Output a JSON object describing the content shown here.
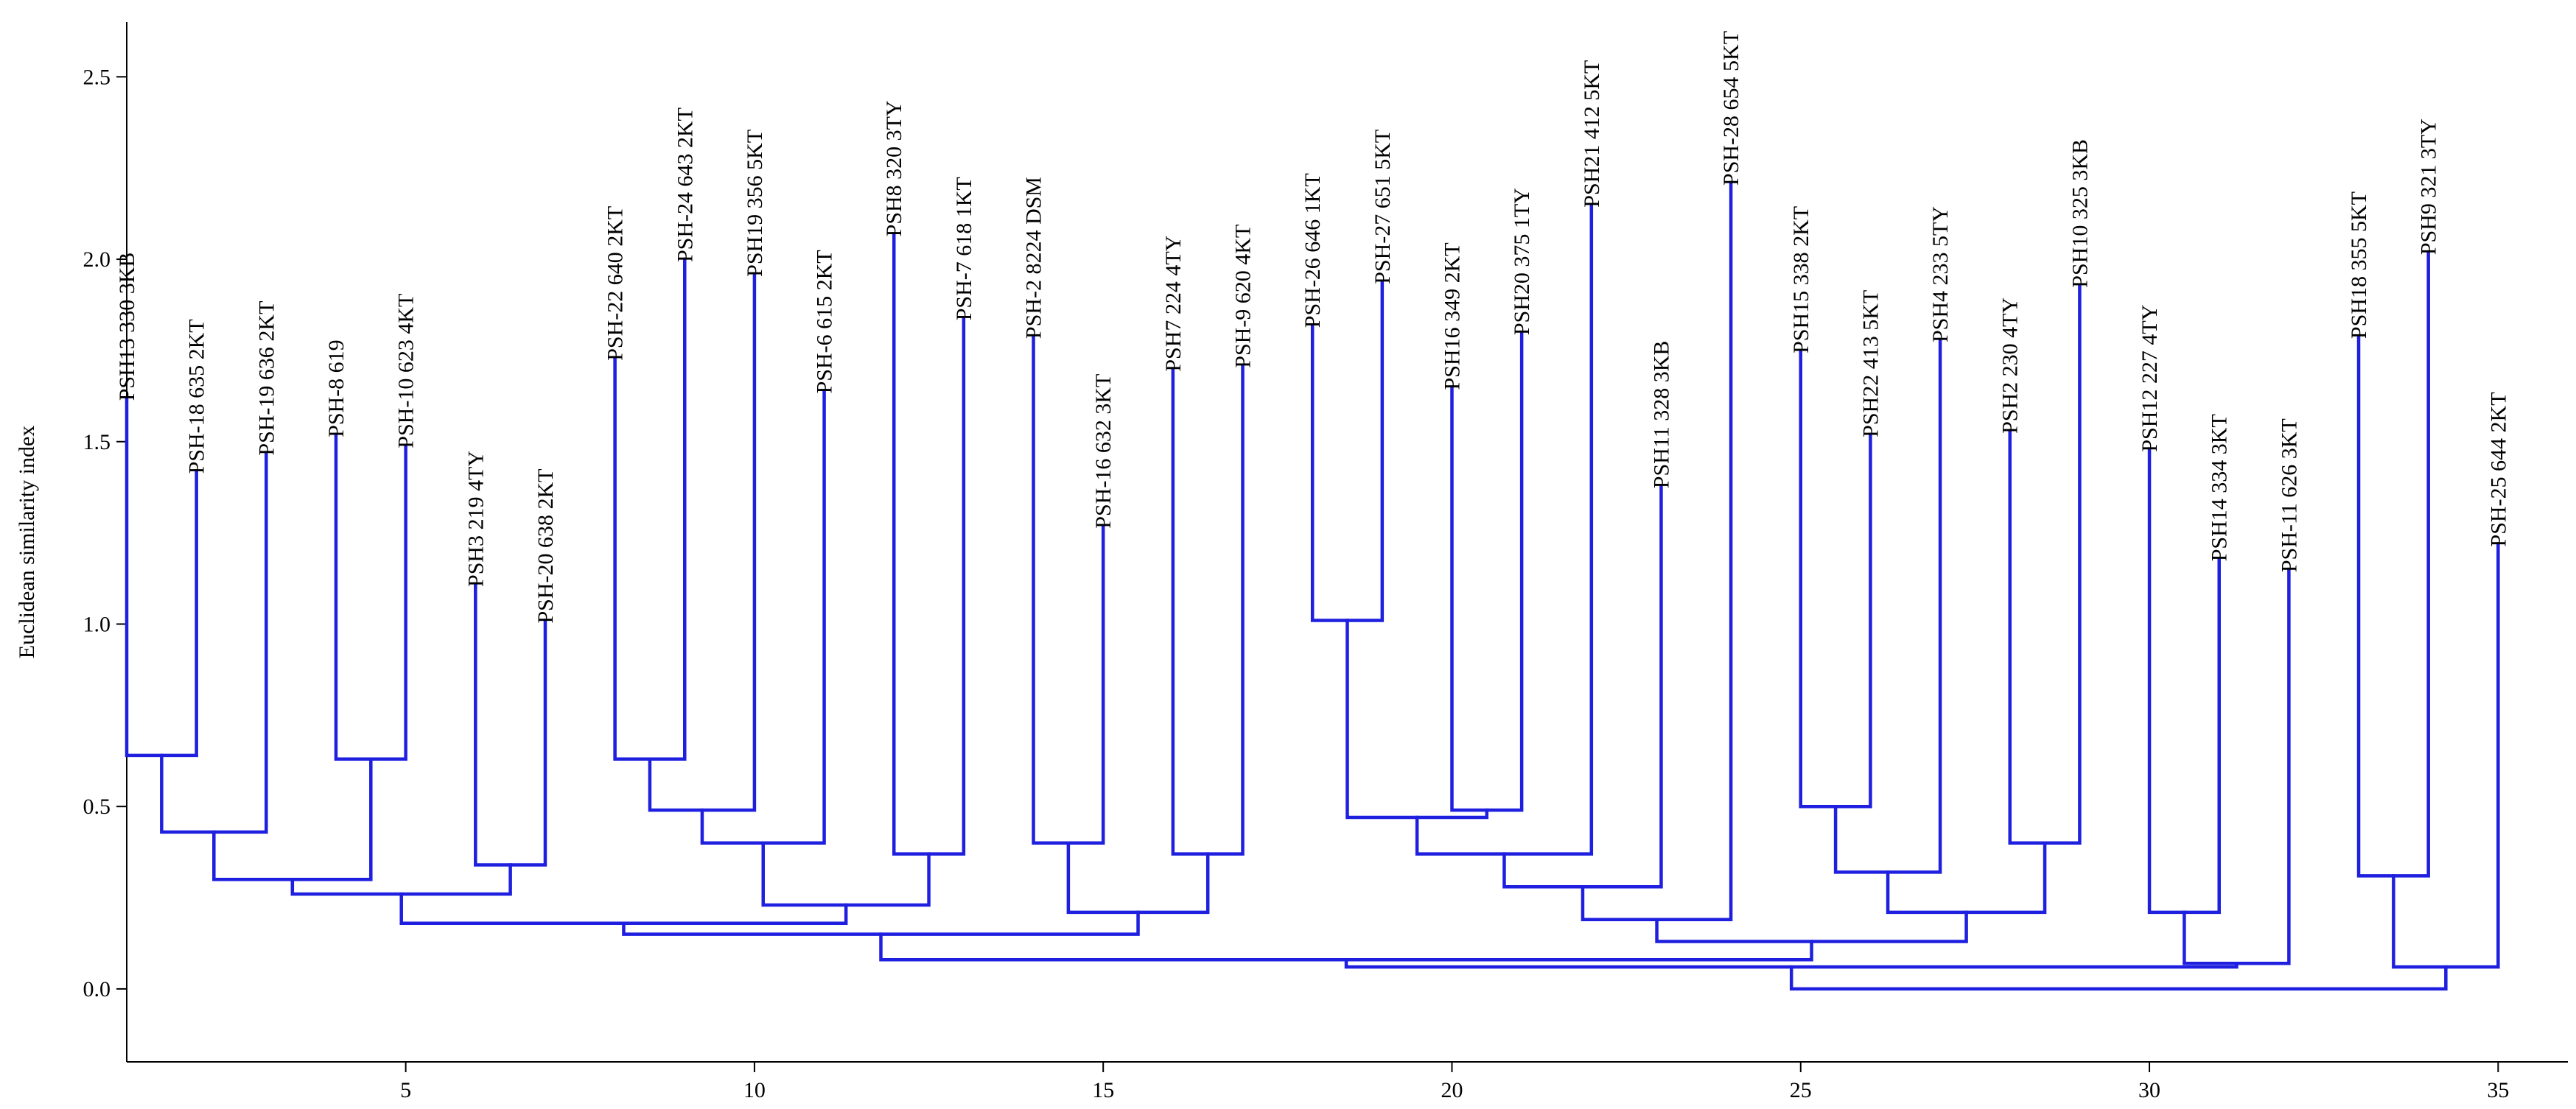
{
  "chart_data": {
    "type": "dendrogram",
    "title": "",
    "xlabel": "",
    "ylabel": "Euclidean similarity index",
    "xlim": [
      1,
      36
    ],
    "ylim": [
      -0.2,
      2.65
    ],
    "x_ticks": [
      5,
      10,
      15,
      20,
      25,
      30,
      35
    ],
    "y_ticks": [
      0.0,
      0.5,
      1.0,
      1.5,
      2.0,
      2.5
    ],
    "y_tick_labels": [
      "0.0",
      "0.5",
      "1.0",
      "1.5",
      "2.0",
      "2.5"
    ],
    "line_color": "#1f1fe0",
    "leaves": [
      {
        "position": 1,
        "label": "PSH13  330 3KB",
        "height": 1.62
      },
      {
        "position": 2,
        "label": "PSH-18 635 2KT",
        "height": 1.42
      },
      {
        "position": 3,
        "label": "PSH-19  636 2KT",
        "height": 1.47
      },
      {
        "position": 4,
        "label": "PSH-8  619",
        "height": 1.52
      },
      {
        "position": 5,
        "label": "PSH-10  623 4KT",
        "height": 1.49
      },
      {
        "position": 6,
        "label": "PSH3 219 4TY",
        "height": 1.11
      },
      {
        "position": 7,
        "label": "PSH-20  638 2KT",
        "height": 1.01
      },
      {
        "position": 8,
        "label": "PSH-22 640 2KT",
        "height": 1.73
      },
      {
        "position": 9,
        "label": "PSH-24   643 2KT",
        "height": 2.0
      },
      {
        "position": 10,
        "label": "PSH19  356 5KT",
        "height": 1.96
      },
      {
        "position": 11,
        "label": "PSH-6  615 2KT",
        "height": 1.64
      },
      {
        "position": 12,
        "label": "PSH8  320 3TY",
        "height": 2.07
      },
      {
        "position": 13,
        "label": "PSH-7  618 1KT",
        "height": 1.84
      },
      {
        "position": 14,
        "label": "PSH-2  8224 DSM",
        "height": 1.79
      },
      {
        "position": 15,
        "label": "PSH-16 632 3KT",
        "height": 1.27
      },
      {
        "position": 16,
        "label": "PSH7  224 4TY",
        "height": 1.7
      },
      {
        "position": 17,
        "label": "PSH-9  620 4KT",
        "height": 1.71
      },
      {
        "position": 18,
        "label": "PSH-26  646 1KT",
        "height": 1.82
      },
      {
        "position": 19,
        "label": "PSH-27  651 5KT",
        "height": 1.94
      },
      {
        "position": 20,
        "label": "PSH16  349 2KT",
        "height": 1.65
      },
      {
        "position": 21,
        "label": "PSH20  375 1TY",
        "height": 1.8
      },
      {
        "position": 22,
        "label": "PSH21  412 5KT",
        "height": 2.15
      },
      {
        "position": 23,
        "label": "PSH11  328 3KB",
        "height": 1.38
      },
      {
        "position": 24,
        "label": "PSH-28  654 5KT",
        "height": 2.21
      },
      {
        "position": 25,
        "label": "PSH15  338 2KT",
        "height": 1.75
      },
      {
        "position": 26,
        "label": "PSH22  413 5KT",
        "height": 1.52
      },
      {
        "position": 27,
        "label": "PSH4  233 5TY",
        "height": 1.78
      },
      {
        "position": 28,
        "label": "PSH2  230 4TY",
        "height": 1.53
      },
      {
        "position": 29,
        "label": "PSH10  325 3KB",
        "height": 1.93
      },
      {
        "position": 30,
        "label": "PSH12  227 4TY",
        "height": 1.48
      },
      {
        "position": 31,
        "label": "PSH14  334 3KT",
        "height": 1.18
      },
      {
        "position": 32,
        "label": "PSH-11  626 3KT",
        "height": 1.15
      },
      {
        "position": 33,
        "label": "PSH18  355 5KT",
        "height": 1.79
      },
      {
        "position": 34,
        "label": "PSH9  321 3TY",
        "height": 2.02
      },
      {
        "position": 35,
        "label": "PSH-25  644 2KT",
        "height": 1.22
      }
    ],
    "merges": [
      {
        "id": "n1",
        "left": 1,
        "right": 2,
        "height": 0.64
      },
      {
        "id": "n2",
        "left": "n1",
        "right": 3,
        "height": 0.43
      },
      {
        "id": "n3",
        "left": 4,
        "right": 5,
        "height": 0.63
      },
      {
        "id": "n4",
        "left": "n2",
        "right": "n3",
        "height": 0.3
      },
      {
        "id": "n5",
        "left": 6,
        "right": 7,
        "height": 0.34
      },
      {
        "id": "n6",
        "left": "n4",
        "right": "n5",
        "height": 0.26
      },
      {
        "id": "n7",
        "left": 8,
        "right": 9,
        "height": 0.63
      },
      {
        "id": "n8",
        "left": "n7",
        "right": 10,
        "height": 0.49
      },
      {
        "id": "n9",
        "left": "n8",
        "right": 11,
        "height": 0.4
      },
      {
        "id": "n10",
        "left": 12,
        "right": 13,
        "height": 0.37
      },
      {
        "id": "n11",
        "left": "n9",
        "right": "n10",
        "height": 0.23
      },
      {
        "id": "n12",
        "left": "n6",
        "right": "n11",
        "height": 0.18
      },
      {
        "id": "n13",
        "left": 14,
        "right": 15,
        "height": 0.4
      },
      {
        "id": "n14",
        "left": 16,
        "right": 17,
        "height": 0.37
      },
      {
        "id": "n15",
        "left": "n13",
        "right": "n14",
        "height": 0.21
      },
      {
        "id": "n16",
        "left": "n12",
        "right": "n15",
        "height": 0.15
      },
      {
        "id": "n17",
        "left": 18,
        "right": 19,
        "height": 1.01
      },
      {
        "id": "n18",
        "left": 20,
        "right": 21,
        "height": 0.49
      },
      {
        "id": "n19",
        "left": "n17",
        "right": "n18",
        "height": 0.47
      },
      {
        "id": "n20",
        "left": "n19",
        "right": 22,
        "height": 0.37
      },
      {
        "id": "n21",
        "left": "n20",
        "right": 23,
        "height": 0.28
      },
      {
        "id": "n22",
        "left": "n21",
        "right": 24,
        "height": 0.19
      },
      {
        "id": "n23",
        "left": 25,
        "right": 26,
        "height": 0.5
      },
      {
        "id": "n24",
        "left": "n23",
        "right": 27,
        "height": 0.32
      },
      {
        "id": "n25",
        "left": 28,
        "right": 29,
        "height": 0.4
      },
      {
        "id": "n26",
        "left": "n24",
        "right": "n25",
        "height": 0.21
      },
      {
        "id": "n27",
        "left": "n22",
        "right": "n26",
        "height": 0.13
      },
      {
        "id": "n28",
        "left": "n16",
        "right": "n27",
        "height": 0.08
      },
      {
        "id": "n29",
        "left": 30,
        "right": 31,
        "height": 0.21
      },
      {
        "id": "n30",
        "left": "n29",
        "right": 32,
        "height": 0.07
      },
      {
        "id": "n31",
        "left": 33,
        "right": 34,
        "height": 0.31
      },
      {
        "id": "n32",
        "left": "n31",
        "right": 35,
        "height": 0.06
      },
      {
        "id": "n33",
        "left": "n28",
        "right": "n30",
        "height": 0.06
      },
      {
        "id": "n34",
        "left": "n33",
        "right": "n32",
        "height": 0.0
      }
    ]
  }
}
